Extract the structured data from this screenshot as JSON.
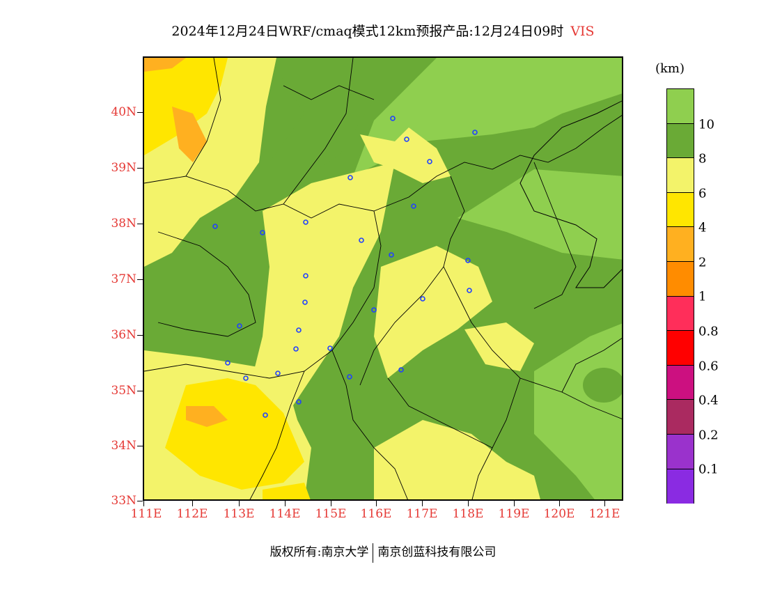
{
  "title": {
    "main": "2024年12月24日WRF/cmaq模式12km预报产品:12月24日09时",
    "variable": "VIS"
  },
  "map": {
    "lat_labels": [
      "40N",
      "39N",
      "38N",
      "37N",
      "36N",
      "35N",
      "34N",
      "33N"
    ],
    "lon_labels": [
      "111E",
      "112E",
      "113E",
      "114E",
      "115E",
      "116E",
      "117E",
      "118E",
      "119E",
      "120E",
      "121E"
    ]
  },
  "colorbar": {
    "unit": "(km)",
    "labels": [
      "10",
      "8",
      "6",
      "4",
      "2",
      "1",
      "0.8",
      "0.6",
      "0.4",
      "0.2",
      "0.1"
    ],
    "colors": [
      "#8fcf4f",
      "#6aaa36",
      "#f3f36a",
      "#ffe600",
      "#ffb020",
      "#ff8c00",
      "#ff2e5a",
      "#ff0000",
      "#cc1080",
      "#aa2a60",
      "#9a32cc",
      "#8a2be2"
    ]
  },
  "footer": {
    "copyright": "版权所有:南京大学",
    "company": "南京创蓝科技有限公司"
  }
}
